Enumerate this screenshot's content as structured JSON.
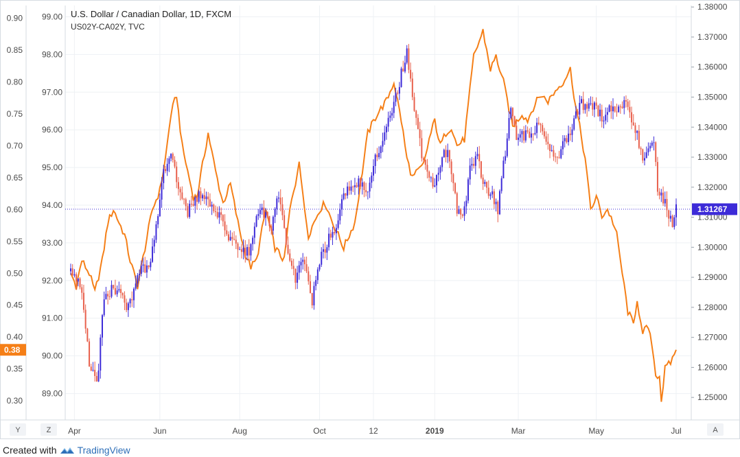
{
  "footer": {
    "created_with": "Created with",
    "brand": "TradingView"
  },
  "axis_buttons": {
    "left": "Y",
    "mid": "Z",
    "right": "A"
  },
  "chart_data": {
    "type": "line",
    "title": "U.S. Dollar / Canadian Dollar, 1D, FXCM",
    "subtitle": "US02Y-CA02Y, TVC",
    "x_ticks": [
      "Apr",
      "Jun",
      "Aug",
      "Oct",
      "12",
      "2019",
      "Mar",
      "May",
      "Jul"
    ],
    "left_axis_1": {
      "ticks": [
        "0.90",
        "0.85",
        "0.80",
        "0.75",
        "0.70",
        "0.65",
        "0.60",
        "0.55",
        "0.50",
        "0.45",
        "0.40",
        "0.35",
        "0.30"
      ],
      "ylim": [
        0.27,
        0.92
      ]
    },
    "left_axis_2": {
      "ticks": [
        "99.00",
        "98.00",
        "97.00",
        "96.00",
        "95.00",
        "94.00",
        "93.00",
        "92.00",
        "91.00",
        "90.00",
        "89.00"
      ],
      "ylim": [
        88.3,
        99.3
      ]
    },
    "right_axis": {
      "ticks": [
        "1.38000",
        "1.37000",
        "1.36000",
        "1.35000",
        "1.34000",
        "1.33000",
        "1.32000",
        "1.31000",
        "1.30000",
        "1.29000",
        "1.28000",
        "1.27000",
        "1.26000",
        "1.25000"
      ],
      "ylim": [
        1.2425,
        1.3805
      ]
    },
    "last_labels": {
      "price": "1.31267",
      "spread": "0.38"
    },
    "price_level": 1.31267,
    "colors": {
      "up": "#3d2bd8",
      "down": "#e8604c",
      "spread": "#f57f17",
      "price_label": "#3d2bd8",
      "spread_label": "#f57f17",
      "grid": "#eef1f4"
    },
    "series": [
      {
        "name": "USD/CAD (FXCM)",
        "style": "candlestick",
        "anchors_x": [
          0,
          4,
          7,
          10,
          13,
          15,
          17,
          19,
          23,
          26,
          30,
          33,
          36,
          39,
          42,
          47,
          49,
          52,
          54,
          56,
          60,
          63,
          67,
          70,
          75,
          80,
          87,
          96,
          102,
          108,
          112,
          116,
          121,
          126,
          130,
          134,
          139,
          143,
          146,
          150,
          155,
          159,
          163,
          166,
          170,
          175,
          181,
          186,
          190,
          195,
          199,
          203,
          206,
          208,
          212,
          215,
          219,
          222,
          225,
          227,
          230,
          234,
          237,
          240,
          246,
          252,
          256,
          262,
          265,
          270,
          274,
          278,
          282,
          287,
          291,
          295,
          299,
          302,
          305,
          308,
          311,
          314,
          316,
          318,
          320,
          323,
          324,
          326
        ],
        "anchors_y": [
          1.292,
          1.29,
          1.281,
          1.26,
          1.256,
          1.258,
          1.278,
          1.284,
          1.286,
          1.287,
          1.28,
          1.282,
          1.29,
          1.293,
          1.293,
          1.312,
          1.322,
          1.329,
          1.33,
          1.325,
          1.317,
          1.312,
          1.315,
          1.318,
          1.314,
          1.31,
          1.302,
          1.298,
          1.314,
          1.306,
          1.318,
          1.3,
          1.29,
          1.296,
          1.282,
          1.295,
          1.303,
          1.306,
          1.315,
          1.32,
          1.322,
          1.318,
          1.328,
          1.333,
          1.34,
          1.35,
          1.365,
          1.342,
          1.328,
          1.32,
          1.328,
          1.333,
          1.323,
          1.313,
          1.312,
          1.328,
          1.33,
          1.322,
          1.316,
          1.318,
          1.312,
          1.332,
          1.346,
          1.336,
          1.338,
          1.34,
          1.336,
          1.33,
          1.335,
          1.34,
          1.348,
          1.346,
          1.347,
          1.342,
          1.347,
          1.345,
          1.35,
          1.342,
          1.337,
          1.329,
          1.333,
          1.336,
          1.32,
          1.317,
          1.315,
          1.309,
          1.308,
          1.3127
        ]
      },
      {
        "name": "US02Y-CA02Y (TVC)",
        "style": "line",
        "anchors_x": [
          0,
          3,
          6,
          10,
          13,
          17,
          20,
          23,
          26,
          29,
          32,
          36,
          40,
          44,
          48,
          51,
          54,
          57,
          60,
          63,
          66,
          68,
          71,
          74,
          78,
          82,
          86,
          90,
          94,
          97,
          100,
          105,
          110,
          115,
          118,
          121,
          123,
          125,
          128,
          131,
          134,
          137,
          141,
          144,
          147,
          150,
          153,
          156,
          160,
          165,
          170,
          174,
          178,
          181,
          184,
          187,
          190,
          193,
          196,
          199,
          202,
          205,
          208,
          212,
          217,
          222,
          226,
          229,
          233,
          238,
          243,
          246,
          249,
          253,
          257,
          262,
          265,
          269,
          272,
          274,
          277,
          280,
          283,
          286,
          289,
          292,
          294,
          297,
          300,
          303,
          305,
          308,
          310,
          313,
          315,
          317,
          318,
          320,
          323,
          326
        ],
        "anchors_y": [
          0.5,
          0.48,
          0.52,
          0.5,
          0.47,
          0.52,
          0.58,
          0.6,
          0.58,
          0.56,
          0.52,
          0.48,
          0.54,
          0.6,
          0.63,
          0.68,
          0.75,
          0.78,
          0.7,
          0.66,
          0.62,
          0.62,
          0.67,
          0.72,
          0.66,
          0.61,
          0.64,
          0.58,
          0.53,
          0.51,
          0.52,
          0.6,
          0.54,
          0.52,
          0.6,
          0.64,
          0.68,
          0.62,
          0.56,
          0.58,
          0.6,
          0.61,
          0.58,
          0.56,
          0.54,
          0.56,
          0.58,
          0.64,
          0.72,
          0.75,
          0.77,
          0.8,
          0.74,
          0.68,
          0.65,
          0.66,
          0.67,
          0.71,
          0.74,
          0.7,
          0.72,
          0.73,
          0.7,
          0.71,
          0.84,
          0.88,
          0.82,
          0.84,
          0.8,
          0.73,
          0.75,
          0.74,
          0.76,
          0.78,
          0.77,
          0.79,
          0.8,
          0.82,
          0.76,
          0.73,
          0.68,
          0.6,
          0.62,
          0.59,
          0.6,
          0.58,
          0.56,
          0.5,
          0.44,
          0.42,
          0.46,
          0.4,
          0.42,
          0.39,
          0.34,
          0.34,
          0.3,
          0.35,
          0.36,
          0.38
        ]
      }
    ]
  }
}
